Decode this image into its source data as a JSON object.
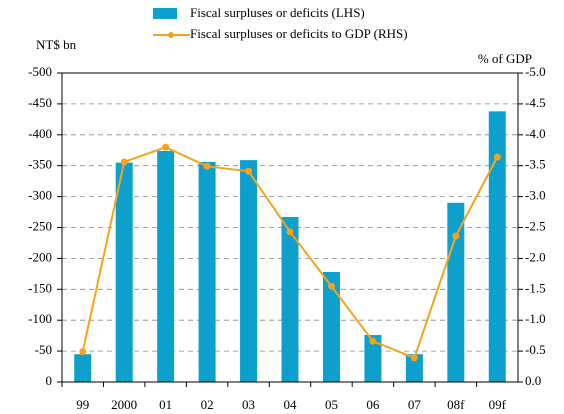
{
  "chart_data": {
    "type": "bar_line",
    "legend": [
      "Fiscal surpluses or deficits (LHS)",
      "Fiscal surpluses or deficits  to GDP (RHS)"
    ],
    "ylabel": "NT$ bn",
    "y2label": "% of GDP",
    "categories": [
      "99",
      "2000",
      "01",
      "02",
      "03",
      "04",
      "05",
      "06",
      "07",
      "08f",
      "09f"
    ],
    "series": [
      {
        "name": "Fiscal surpluses or deficits (LHS)",
        "type": "bar",
        "color": "#0ea0cd",
        "values": [
          -45,
          -355,
          -374,
          -356,
          -359,
          -267,
          -178,
          -76,
          -45,
          -290,
          -438
        ]
      },
      {
        "name": "Fiscal surpluses or deficits  to GDP (RHS)",
        "type": "line",
        "axis": "y2",
        "color": "#f5a31a",
        "values": [
          -0.49,
          -3.56,
          -3.8,
          -3.49,
          -3.41,
          -2.43,
          -1.55,
          -0.66,
          -0.39,
          -2.36,
          -3.64
        ]
      }
    ],
    "ylim": [
      0,
      -500
    ],
    "yticks": [
      -500,
      -450,
      -400,
      -350,
      -300,
      -250,
      -200,
      -150,
      -100,
      -50,
      0
    ],
    "y2lim": [
      0,
      -5
    ],
    "y2ticks": [
      {
        "value": -5,
        "label": "-5.0"
      },
      {
        "value": -4.5,
        "label": "-4.5"
      },
      {
        "value": -4,
        "label": "-4.0"
      },
      {
        "value": -3.5,
        "label": "-3.5"
      },
      {
        "value": -3,
        "label": "-3.0"
      },
      {
        "value": -2.5,
        "label": "-2.5"
      },
      {
        "value": -2,
        "label": "-2.0"
      },
      {
        "value": -1.5,
        "label": "-1.5"
      },
      {
        "value": -1,
        "label": "-1.0"
      },
      {
        "value": -0.5,
        "label": "-0.5"
      },
      {
        "value": 0,
        "label": "0.0"
      }
    ],
    "grid": true
  }
}
